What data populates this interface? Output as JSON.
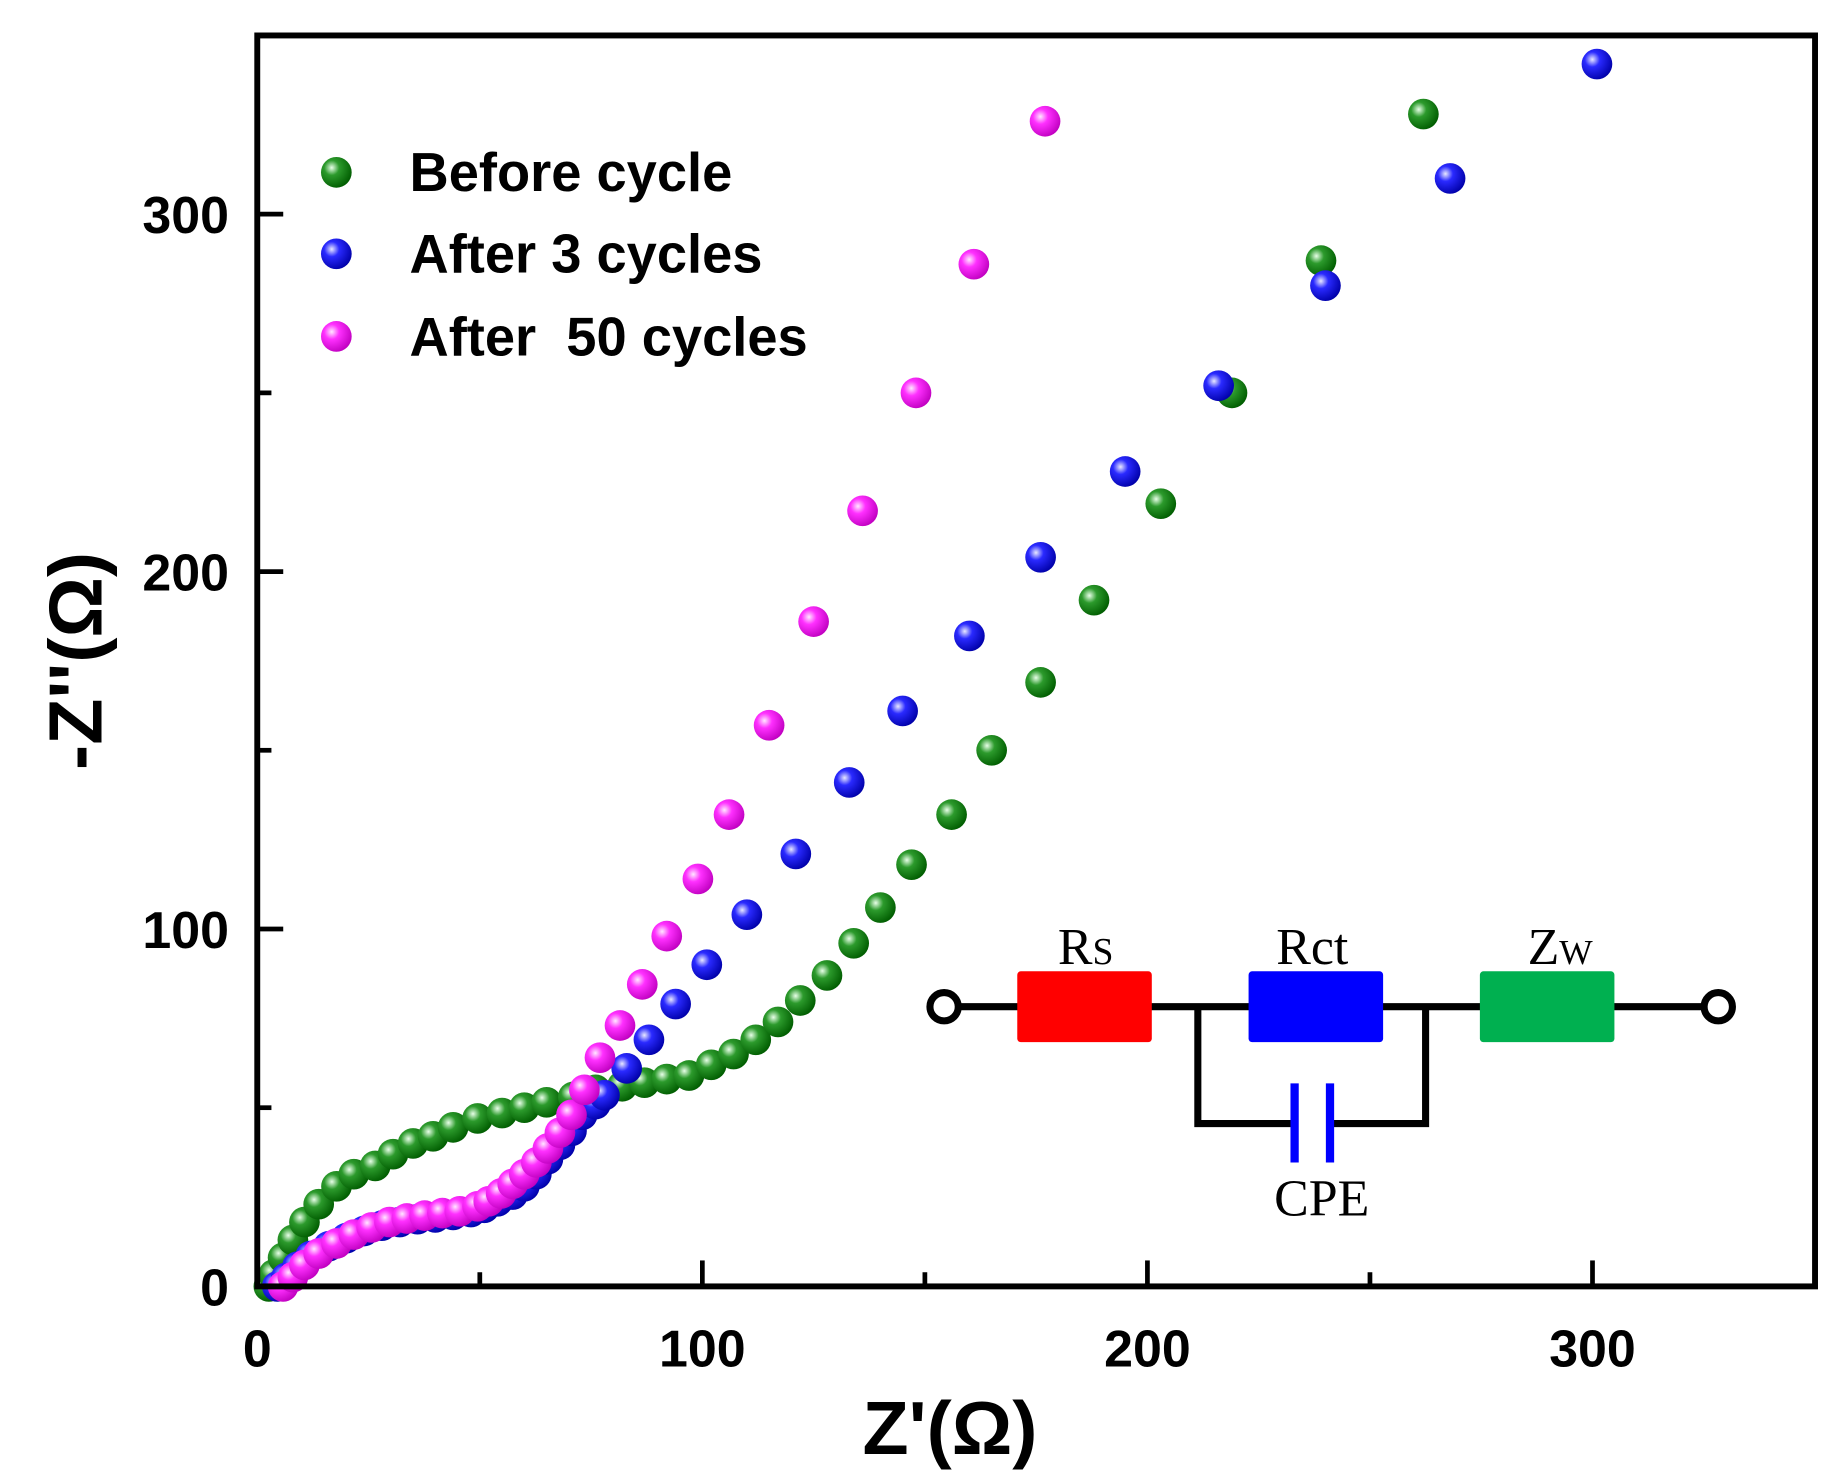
{
  "chart_data": {
    "type": "scatter",
    "title": "",
    "xlabel": "Z'(Ω)",
    "ylabel": "-Z''(Ω)",
    "xlim": [
      0,
      350
    ],
    "ylim": [
      0,
      350
    ],
    "xticks": [
      0,
      100,
      200,
      300
    ],
    "yticks": [
      0,
      100,
      200,
      300
    ],
    "x_tick_labels": [
      "0",
      "100",
      "200",
      "300"
    ],
    "y_tick_labels": [
      "0",
      "100",
      "200",
      "300"
    ],
    "minor_ticks": [
      50,
      150,
      250
    ],
    "grid": false,
    "legend_position": "top-left",
    "series": [
      {
        "name": "Before cycle",
        "color": "#008000",
        "points": [
          [
            2.6,
            0
          ],
          [
            3.7,
            3.3
          ],
          [
            5.8,
            8
          ],
          [
            8,
            13
          ],
          [
            10.6,
            18
          ],
          [
            13.8,
            23
          ],
          [
            17.8,
            28
          ],
          [
            21.7,
            31.4
          ],
          [
            26.5,
            33.7
          ],
          [
            30.5,
            37
          ],
          [
            35,
            40
          ],
          [
            39.5,
            42
          ],
          [
            44,
            44.5
          ],
          [
            49.5,
            47
          ],
          [
            55,
            48.5
          ],
          [
            60,
            50
          ],
          [
            65,
            51.5
          ],
          [
            71,
            53
          ],
          [
            76,
            55
          ],
          [
            82,
            56
          ],
          [
            87,
            57
          ],
          [
            92,
            58
          ],
          [
            97,
            59
          ],
          [
            102,
            62
          ],
          [
            107,
            65
          ],
          [
            112,
            69
          ],
          [
            117,
            74
          ],
          [
            122,
            80
          ],
          [
            128,
            87
          ],
          [
            134,
            96
          ],
          [
            140,
            106
          ],
          [
            147,
            118
          ],
          [
            156,
            132
          ],
          [
            165,
            150
          ],
          [
            176,
            169
          ],
          [
            188,
            192
          ],
          [
            203,
            219
          ],
          [
            219,
            250
          ],
          [
            239,
            287
          ],
          [
            262,
            328
          ]
        ]
      },
      {
        "name": "After 3 cycles",
        "color": "#0000ff",
        "points": [
          [
            4.5,
            0
          ],
          [
            6.5,
            2.4
          ],
          [
            9,
            5.5
          ],
          [
            12,
            8.5
          ],
          [
            16,
            11.2
          ],
          [
            20,
            13.5
          ],
          [
            24,
            15.5
          ],
          [
            28,
            17
          ],
          [
            32,
            18
          ],
          [
            36,
            18.8
          ],
          [
            40,
            19.3
          ],
          [
            44,
            20
          ],
          [
            48,
            20.8
          ],
          [
            51,
            22
          ],
          [
            54,
            23.8
          ],
          [
            57.4,
            25.7
          ],
          [
            60,
            28
          ],
          [
            62.7,
            31.4
          ],
          [
            65.3,
            35.6
          ],
          [
            68,
            39.6
          ],
          [
            70.6,
            43.5
          ],
          [
            73,
            48
          ],
          [
            76,
            51
          ],
          [
            78,
            53.5
          ],
          [
            83,
            61
          ],
          [
            88,
            69
          ],
          [
            94,
            79
          ],
          [
            101,
            90
          ],
          [
            110,
            104
          ],
          [
            121,
            121
          ],
          [
            133,
            141
          ],
          [
            145,
            161
          ],
          [
            160,
            182
          ],
          [
            176,
            204
          ],
          [
            195,
            228
          ],
          [
            216,
            252
          ],
          [
            240,
            280
          ],
          [
            268,
            310
          ],
          [
            301,
            342
          ]
        ]
      },
      {
        "name": "After  50 cycles",
        "color": "#ff00ff",
        "points": [
          [
            5.8,
            0
          ],
          [
            8,
            2.6
          ],
          [
            10.6,
            6
          ],
          [
            13.8,
            9.2
          ],
          [
            17.8,
            12
          ],
          [
            21.7,
            14.5
          ],
          [
            25.7,
            16.5
          ],
          [
            29.7,
            18
          ],
          [
            33.6,
            19
          ],
          [
            37.6,
            19.8
          ],
          [
            41.6,
            20.5
          ],
          [
            45.5,
            21
          ],
          [
            49.5,
            22.4
          ],
          [
            52,
            23.8
          ],
          [
            54.8,
            26
          ],
          [
            57.4,
            28.7
          ],
          [
            60,
            31.4
          ],
          [
            62.7,
            34.7
          ],
          [
            65.3,
            38.6
          ],
          [
            68,
            43
          ],
          [
            70.6,
            48
          ],
          [
            73.5,
            55
          ],
          [
            77,
            64
          ],
          [
            81.5,
            73
          ],
          [
            86.5,
            84.5
          ],
          [
            92,
            98
          ],
          [
            99,
            114
          ],
          [
            106,
            132
          ],
          [
            115,
            157
          ],
          [
            125,
            186
          ],
          [
            136,
            217
          ],
          [
            148,
            250
          ],
          [
            161,
            286
          ],
          [
            177,
            326
          ]
        ]
      }
    ],
    "annotations": {
      "equivalent_circuit": {
        "rs_label": "Rs",
        "rs_main": "R",
        "rs_sub": "S",
        "rs_color": "#ff0000",
        "rct_label": "Rct",
        "rct_main": "R",
        "rct_sub": "ct",
        "rct_color": "#0000ff",
        "zw_label": "Zw",
        "zw_main": "Z",
        "zw_sub": "W",
        "zw_color": "#00b050",
        "cpe_label": "CPE",
        "cpe_color": "#0000ff"
      }
    }
  }
}
